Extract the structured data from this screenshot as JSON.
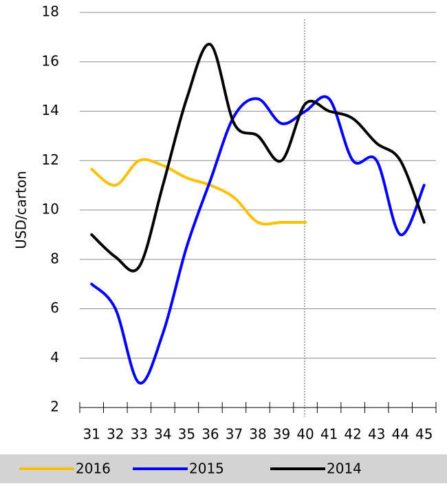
{
  "chart_data": {
    "type": "line",
    "y_label": "USD/carton",
    "categories": [
      "31",
      "32",
      "33",
      "34",
      "35",
      "36",
      "37",
      "38",
      "39",
      "40",
      "41",
      "42",
      "43",
      "44",
      "45"
    ],
    "series": [
      {
        "name": "2016",
        "color": "#ffc000",
        "values": [
          11.65,
          11.0,
          12.0,
          11.8,
          11.3,
          11.0,
          10.5,
          9.5,
          9.5,
          9.5,
          null,
          null,
          null,
          null,
          null
        ]
      },
      {
        "name": "2015",
        "color": "#0000ff",
        "values": [
          7.0,
          6.0,
          3.0,
          5.0,
          8.5,
          11.2,
          13.8,
          14.5,
          13.5,
          14.0,
          14.5,
          12.0,
          12.0,
          9.0,
          11.0
        ]
      },
      {
        "name": "2014",
        "color": "#000000",
        "values": [
          9.0,
          8.1,
          7.7,
          11.0,
          14.5,
          16.7,
          13.5,
          13.0,
          12.0,
          14.3,
          14.0,
          13.7,
          12.7,
          12.0,
          9.5
        ]
      }
    ],
    "ylim": [
      2,
      18
    ],
    "yticks": [
      2,
      4,
      6,
      8,
      10,
      12,
      14,
      16,
      18
    ],
    "grid": true
  }
}
